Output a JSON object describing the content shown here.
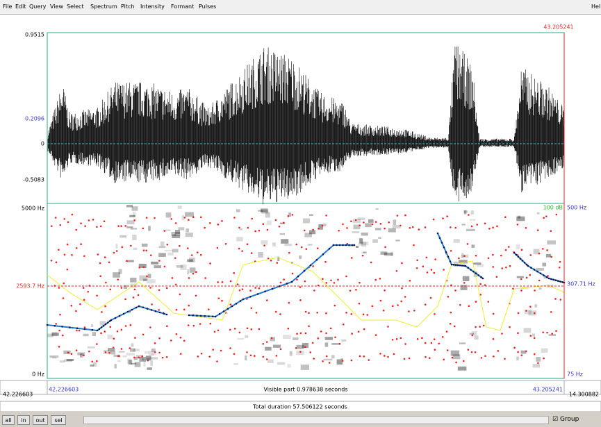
{
  "menu": {
    "items": [
      "File",
      "Edit",
      "Query",
      "View",
      "Select",
      "Spectrum",
      "Pitch",
      "Intensity",
      "Formant",
      "Pulses"
    ],
    "help": "Hel"
  },
  "waveform": {
    "cursor_time": "43.205241",
    "max": "0.9515",
    "cursor_value": "0.2096",
    "zero": "0",
    "min": "-0.5083"
  },
  "spectrogram": {
    "top_freq": "5000 Hz",
    "cursor_freq": "2593.7 Hz",
    "bottom_freq": "0 Hz",
    "intensity_top": "100 dB",
    "pitch_top": "500 Hz",
    "pitch_cursor": "307.71 Hz",
    "pitch_bottom": "75 Hz"
  },
  "time_bar": {
    "window_start": "42.226603",
    "visible_start": "42.226603",
    "visible_part": "Visible part 0.978638 seconds",
    "visible_end": "43.205241",
    "window_rest": "14.300882"
  },
  "total_duration": "Total duration 57.506122 seconds",
  "buttons": [
    "all",
    "in",
    "out",
    "sel"
  ],
  "group": "Group"
}
